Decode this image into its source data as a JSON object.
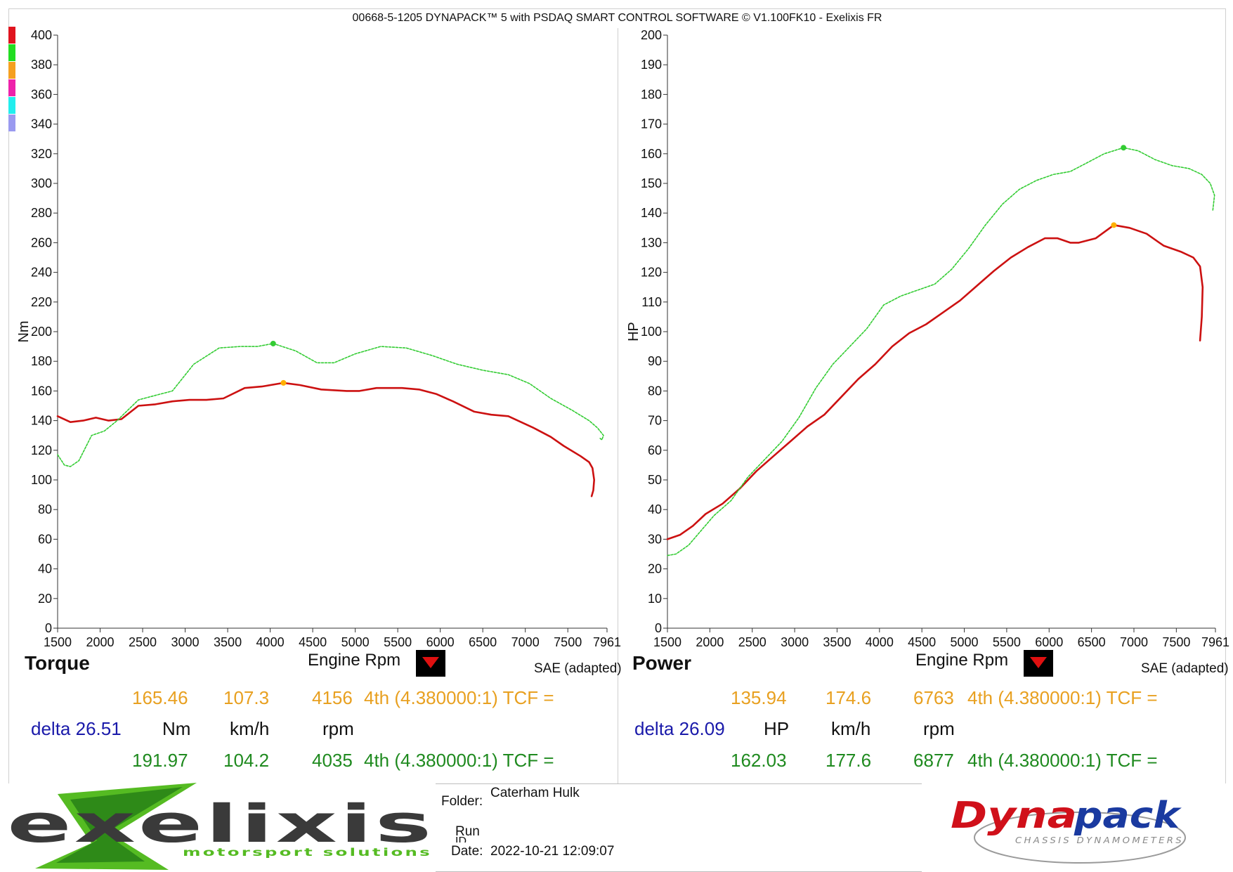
{
  "header": {
    "title": "00668-5-1205 DYNAPACK™ 5 with PSDAQ SMART CONTROL SOFTWARE © V1.100FK10 - Exelixis FR"
  },
  "legend_colors": [
    "#e0141e",
    "#22dd22",
    "#f5a020",
    "#ee22aa",
    "#22eeee",
    "#9a9af0"
  ],
  "torque_panel": {
    "title": "Torque",
    "xlabel": "Engine Rpm",
    "ylabel": "Nm",
    "sae": "SAE (adapted)",
    "run1": {
      "value": "165.46",
      "speed": "107.3",
      "rpm": "4156",
      "gear": "4th (4.380000:1) TCF ="
    },
    "delta": "delta 26.51",
    "units": {
      "value": "Nm",
      "speed": "km/h",
      "rpm": "rpm"
    },
    "run2": {
      "value": "191.97",
      "speed": "104.2",
      "rpm": "4035",
      "gear": "4th (4.380000:1) TCF ="
    }
  },
  "power_panel": {
    "title": "Power",
    "xlabel": "Engine Rpm",
    "ylabel": "HP",
    "sae": "SAE (adapted)",
    "run1": {
      "value": "135.94",
      "speed": "174.6",
      "rpm": "6763",
      "gear": "4th (4.380000:1) TCF ="
    },
    "delta": "delta 26.09",
    "units": {
      "value": "HP",
      "speed": "km/h",
      "rpm": "rpm"
    },
    "run2": {
      "value": "162.03",
      "speed": "177.6",
      "rpm": "6877",
      "gear": "4th (4.380000:1) TCF ="
    }
  },
  "info": {
    "folder_label": "Folder:",
    "folder_value": "Caterham Hulk",
    "run_label": "Run",
    "run_id_label": "ID",
    "date_label": "Date:",
    "date_value": "2022-10-21 12:09:07"
  },
  "logos": {
    "left": "exelixis",
    "left_sub": "motorsport solutions",
    "right": "Dynapack",
    "right_sub": "CHASSIS DYNAMOMETERS"
  },
  "chart_data": [
    {
      "type": "line",
      "xlabel": "Engine Rpm",
      "ylabel": "Nm",
      "xlim": [
        1500,
        7961
      ],
      "ylim": [
        0,
        400
      ],
      "xticks": [
        1500,
        2000,
        2500,
        3000,
        3500,
        4000,
        4500,
        5000,
        5500,
        6000,
        6500,
        7000,
        7500,
        7961
      ],
      "yticks": [
        0,
        20,
        40,
        60,
        80,
        100,
        120,
        140,
        160,
        180,
        200,
        220,
        240,
        260,
        280,
        300,
        320,
        340,
        360,
        380,
        400
      ],
      "series": [
        {
          "color": "#cc1111",
          "style": "solid",
          "x": [
            1500,
            1650,
            1800,
            1950,
            2100,
            2250,
            2450,
            2650,
            2850,
            3050,
            3250,
            3450,
            3700,
            3900,
            4156,
            4350,
            4600,
            4900,
            5050,
            5250,
            5550,
            5750,
            5950,
            6150,
            6400,
            6600,
            6800,
            6950,
            7100,
            7300,
            7450,
            7650,
            7750,
            7790,
            7810,
            7800,
            7780
          ],
          "y": [
            143,
            139,
            140,
            142,
            140,
            141,
            150,
            151,
            153,
            154,
            154,
            155,
            162,
            163,
            165.46,
            164,
            161,
            160,
            160,
            162,
            162,
            161,
            158,
            153,
            146,
            144,
            143,
            139,
            135,
            129,
            123,
            116,
            112,
            108,
            100,
            93,
            89
          ],
          "marker": {
            "x": 4156,
            "y": 165.46
          }
        },
        {
          "color": "#33cc33",
          "style": "dashed",
          "x": [
            1500,
            1580,
            1650,
            1750,
            1900,
            2050,
            2200,
            2450,
            2650,
            2850,
            3100,
            3400,
            3650,
            3850,
            4035,
            4300,
            4550,
            4750,
            5000,
            5300,
            5600,
            5900,
            6200,
            6500,
            6800,
            7050,
            7300,
            7550,
            7750,
            7850,
            7920,
            7900,
            7880
          ],
          "y": [
            117,
            110,
            109,
            113,
            130,
            133,
            140,
            154,
            157,
            160,
            178,
            189,
            190,
            190,
            191.97,
            187,
            179,
            179,
            185,
            190,
            189,
            184,
            178,
            174,
            171,
            165,
            155,
            147,
            140,
            135,
            130,
            127,
            128
          ],
          "marker": {
            "x": 4035,
            "y": 191.97
          }
        }
      ]
    },
    {
      "type": "line",
      "xlabel": "Engine Rpm",
      "ylabel": "HP",
      "xlim": [
        1500,
        7961
      ],
      "ylim": [
        0,
        200
      ],
      "xticks": [
        1500,
        2000,
        2500,
        3000,
        3500,
        4000,
        4500,
        5000,
        5500,
        6000,
        6500,
        7000,
        7500,
        7961
      ],
      "yticks": [
        0,
        10,
        20,
        30,
        40,
        50,
        60,
        70,
        80,
        90,
        100,
        110,
        120,
        130,
        140,
        150,
        160,
        170,
        180,
        190,
        200
      ],
      "series": [
        {
          "color": "#cc1111",
          "style": "solid",
          "x": [
            1500,
            1650,
            1800,
            1950,
            2150,
            2350,
            2550,
            2750,
            2950,
            3150,
            3350,
            3550,
            3750,
            3950,
            4150,
            4350,
            4550,
            4750,
            4950,
            5150,
            5350,
            5550,
            5750,
            5950,
            6100,
            6250,
            6350,
            6550,
            6763,
            6950,
            7150,
            7350,
            7550,
            7700,
            7780,
            7810,
            7800,
            7780
          ],
          "y": [
            30,
            31.5,
            34.5,
            38.5,
            42,
            47,
            53,
            58,
            63,
            68,
            72,
            78,
            84,
            89,
            95,
            99.5,
            102.5,
            106.5,
            110.5,
            115.5,
            120.5,
            125,
            128.5,
            131.5,
            131.5,
            130,
            130,
            131.5,
            135.94,
            135,
            133,
            129,
            127,
            125,
            122,
            115,
            105,
            97
          ],
          "marker": {
            "x": 6763,
            "y": 135.94
          }
        },
        {
          "color": "#33cc33",
          "style": "dashed",
          "x": [
            1500,
            1600,
            1750,
            1900,
            2050,
            2250,
            2450,
            2650,
            2850,
            3050,
            3250,
            3450,
            3650,
            3850,
            4050,
            4250,
            4450,
            4650,
            4850,
            5050,
            5250,
            5450,
            5650,
            5850,
            6050,
            6250,
            6450,
            6650,
            6877,
            7050,
            7250,
            7450,
            7650,
            7800,
            7900,
            7950,
            7930
          ],
          "y": [
            24.5,
            25,
            28,
            33,
            38,
            43,
            51,
            57,
            63,
            71,
            81,
            89,
            95,
            101,
            109,
            112,
            114,
            116,
            121,
            128,
            136,
            143,
            148,
            151,
            153,
            154,
            157,
            160,
            162.03,
            161,
            158,
            156,
            155,
            153,
            150,
            146,
            141
          ],
          "marker": {
            "x": 6877,
            "y": 162.03
          }
        }
      ]
    }
  ]
}
